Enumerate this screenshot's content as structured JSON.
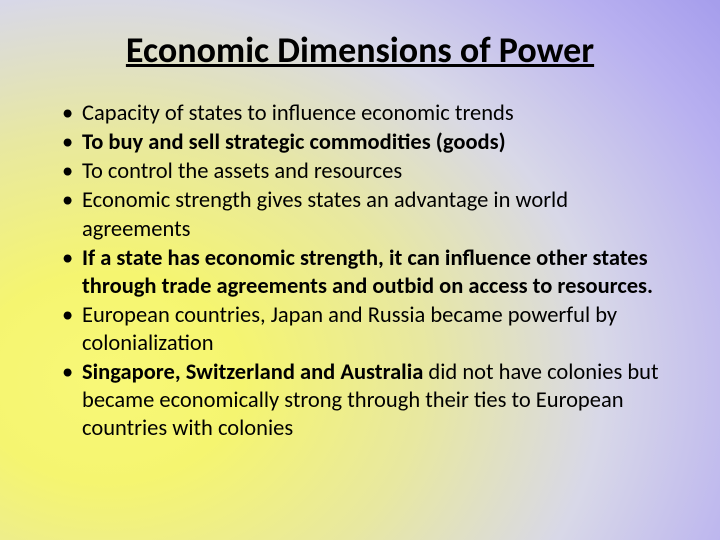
{
  "title": {
    "text": "Economic Dimensions of Power",
    "fontsize": 36,
    "fontweight": 700,
    "color": "#000000"
  },
  "bullets": {
    "fontsize": 22.5,
    "line_height": 1.25,
    "color": "#000000",
    "items": [
      {
        "segments": [
          {
            "text": "Capacity of states to influence economic trends",
            "bold": false
          }
        ]
      },
      {
        "segments": [
          {
            "text": "To buy and sell strategic commodities (goods)",
            "bold": true
          }
        ]
      },
      {
        "segments": [
          {
            "text": "To control the assets and resources",
            "bold": false
          }
        ]
      },
      {
        "segments": [
          {
            "text": "Economic strength gives states an advantage in world agreements",
            "bold": false
          }
        ]
      },
      {
        "segments": [
          {
            "text": "If a state has economic strength, it can influence other states through trade agreements and outbid on access to resources.",
            "bold": true
          }
        ]
      },
      {
        "segments": [
          {
            "text": "European countries, Japan and Russia became powerful by colonialization",
            "bold": false
          }
        ]
      },
      {
        "segments": [
          {
            "text": "Singapore, Switzerland and Australia ",
            "bold": true
          },
          {
            "text": "did not have colonies but became economically strong through their ties to European countries with colonies",
            "bold": false
          }
        ]
      }
    ]
  },
  "background": {
    "gradient_stops": [
      "#f8f878",
      "#f5f570",
      "#e8e8a0",
      "#d8d8e8",
      "#b8b0f0",
      "#9088e8"
    ]
  }
}
